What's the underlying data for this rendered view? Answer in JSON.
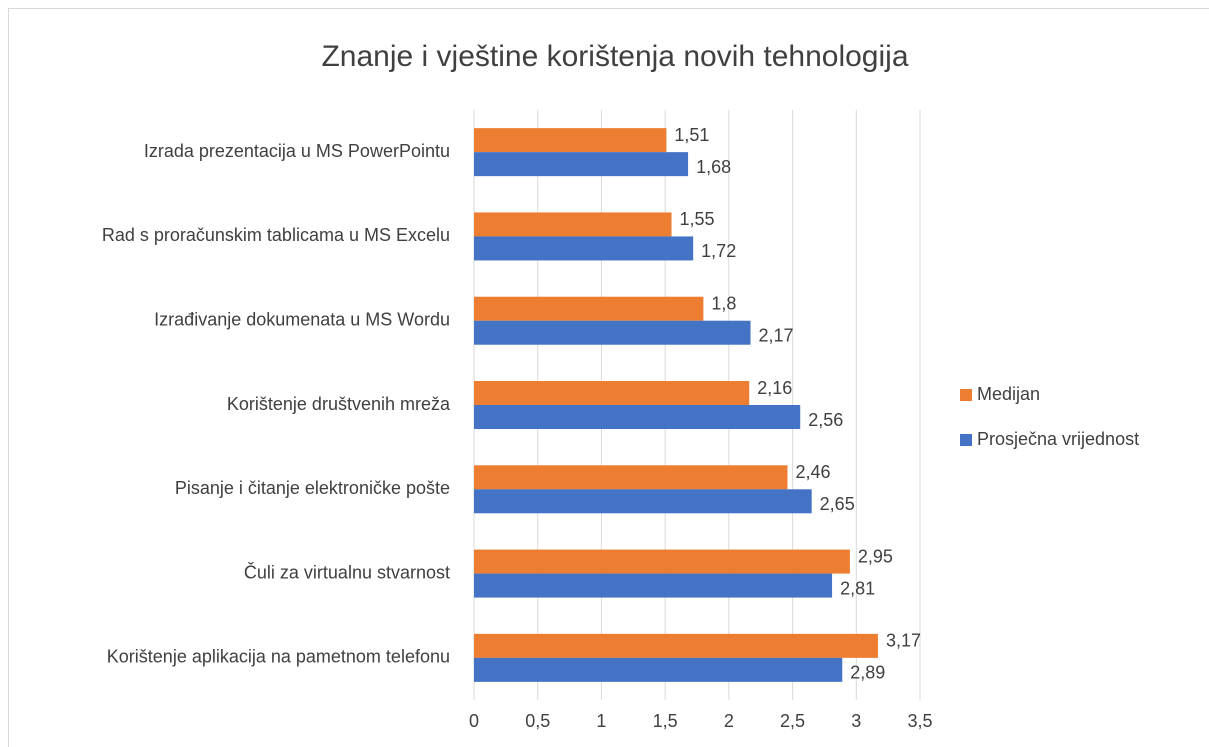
{
  "chart_data": {
    "type": "bar",
    "orientation": "horizontal",
    "title": "Znanje i vještine korištenja novih tehnologija",
    "categories": [
      "Izrada prezentacija u MS PowerPointu",
      "Rad s proračunskim tablicama u MS Excelu",
      "Izrađivanje dokumenata u MS Wordu",
      "Korištenje društvenih mreža",
      "Pisanje i čitanje elektroničke pošte",
      "Čuli za virtualnu stvarnost",
      "Korištenje aplikacija na pametnom telefonu"
    ],
    "series": [
      {
        "name": "Medijan",
        "color": "#ed7d31",
        "values": [
          1.51,
          1.55,
          1.8,
          2.16,
          2.46,
          2.95,
          3.17
        ],
        "value_labels": [
          "1,51",
          "1,55",
          "1,8",
          "2,16",
          "2,46",
          "2,95",
          "3,17"
        ]
      },
      {
        "name": "Prosječna vrijednost",
        "color": "#4472c4",
        "values": [
          1.68,
          1.72,
          2.17,
          2.56,
          2.65,
          2.81,
          2.89
        ],
        "value_labels": [
          "1,68",
          "1,72",
          "2,17",
          "2,56",
          "2,65",
          "2,81",
          "2,89"
        ]
      }
    ],
    "xlim": [
      0,
      3.5
    ],
    "xticks": [
      0,
      {
        "value": 0.5,
        "label": "0,5"
      },
      1,
      {
        "value": 1.5,
        "label": "1,5"
      },
      2,
      {
        "value": 2.5,
        "label": "2,5"
      },
      3,
      {
        "value": 3.5,
        "label": "3,5"
      }
    ],
    "grid": true,
    "legend": "right"
  }
}
